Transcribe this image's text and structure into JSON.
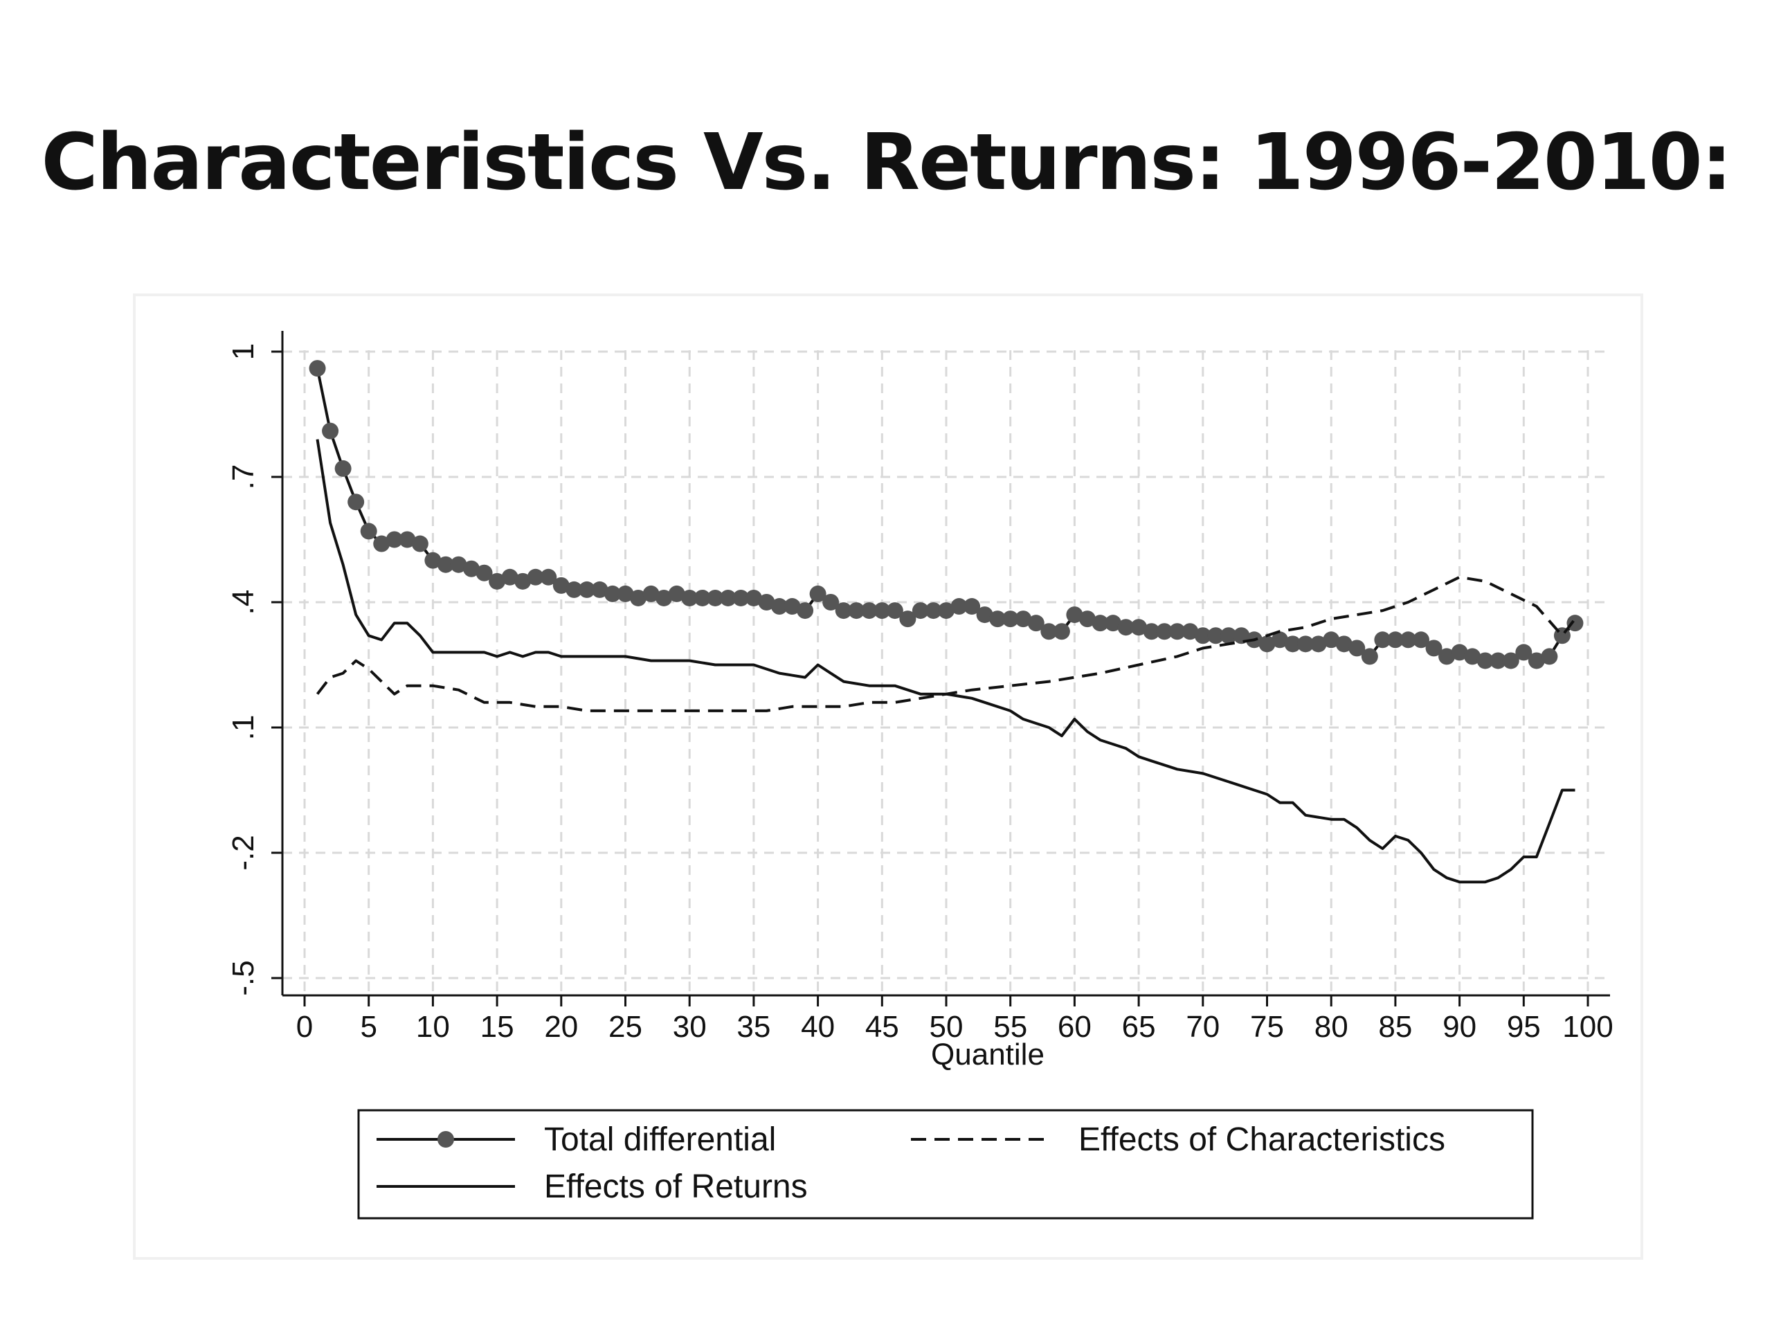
{
  "title": "Characteristics Vs. Returns: 1996-2010:",
  "chart_data": {
    "type": "line",
    "title": "Characteristics Vs. Returns: 1996-2010:",
    "xlabel": "Quantile",
    "ylabel": "",
    "xlim": [
      0,
      100
    ],
    "ylim": [
      -0.5,
      1
    ],
    "xticks": [
      "0",
      "5",
      "10",
      "15",
      "20",
      "25",
      "30",
      "35",
      "40",
      "45",
      "50",
      "55",
      "60",
      "65",
      "70",
      "75",
      "80",
      "85",
      "90",
      "95",
      "100"
    ],
    "yticks": [
      {
        "value": -0.5,
        "label": "-.5"
      },
      {
        "value": -0.2,
        "label": "-.2"
      },
      {
        "value": 0.1,
        "label": ".1"
      },
      {
        "value": 0.4,
        "label": ".4"
      },
      {
        "value": 0.7,
        "label": ".7"
      },
      {
        "value": 1,
        "label": "1"
      }
    ],
    "grid": true,
    "legend_position": "bottom",
    "series": [
      {
        "name": "Total differential",
        "style": "solid-markers",
        "color": "#555555",
        "x": [
          1,
          2,
          3,
          4,
          5,
          6,
          7,
          8,
          9,
          10,
          11,
          12,
          13,
          14,
          15,
          16,
          17,
          18,
          19,
          20,
          21,
          22,
          23,
          24,
          25,
          26,
          27,
          28,
          29,
          30,
          31,
          32,
          33,
          34,
          35,
          36,
          37,
          38,
          39,
          40,
          41,
          42,
          43,
          44,
          45,
          46,
          47,
          48,
          49,
          50,
          51,
          52,
          53,
          54,
          55,
          56,
          57,
          58,
          59,
          60,
          61,
          62,
          63,
          64,
          65,
          66,
          67,
          68,
          69,
          70,
          71,
          72,
          73,
          74,
          75,
          76,
          77,
          78,
          79,
          80,
          81,
          82,
          83,
          84,
          85,
          86,
          87,
          88,
          89,
          90,
          91,
          92,
          93,
          94,
          95,
          96,
          97,
          98,
          99
        ],
        "y": [
          0.96,
          0.81,
          0.72,
          0.64,
          0.57,
          0.54,
          0.55,
          0.55,
          0.54,
          0.5,
          0.49,
          0.49,
          0.48,
          0.47,
          0.45,
          0.46,
          0.45,
          0.46,
          0.46,
          0.44,
          0.43,
          0.43,
          0.43,
          0.42,
          0.42,
          0.41,
          0.42,
          0.41,
          0.42,
          0.41,
          0.41,
          0.41,
          0.41,
          0.41,
          0.41,
          0.4,
          0.39,
          0.39,
          0.38,
          0.42,
          0.4,
          0.38,
          0.38,
          0.38,
          0.38,
          0.38,
          0.36,
          0.38,
          0.38,
          0.38,
          0.39,
          0.39,
          0.37,
          0.36,
          0.36,
          0.36,
          0.35,
          0.33,
          0.33,
          0.37,
          0.36,
          0.35,
          0.35,
          0.34,
          0.34,
          0.33,
          0.33,
          0.33,
          0.33,
          0.32,
          0.32,
          0.32,
          0.32,
          0.31,
          0.3,
          0.31,
          0.3,
          0.3,
          0.3,
          0.31,
          0.3,
          0.29,
          0.27,
          0.31,
          0.31,
          0.31,
          0.31,
          0.29,
          0.27,
          0.28,
          0.27,
          0.26,
          0.26,
          0.26,
          0.28,
          0.26,
          0.27,
          0.32,
          0.35
        ]
      },
      {
        "name": "Effects of Characteristics",
        "style": "dashed",
        "color": "#111111",
        "x": [
          1,
          2,
          3,
          4,
          5,
          6,
          7,
          8,
          9,
          10,
          12,
          14,
          16,
          18,
          20,
          22,
          24,
          26,
          28,
          30,
          32,
          34,
          36,
          38,
          40,
          42,
          44,
          46,
          48,
          50,
          52,
          55,
          58,
          60,
          62,
          65,
          68,
          70,
          72,
          74,
          76,
          78,
          80,
          82,
          84,
          86,
          88,
          90,
          92,
          94,
          96,
          98,
          99
        ],
        "y": [
          0.18,
          0.22,
          0.23,
          0.26,
          0.24,
          0.21,
          0.18,
          0.2,
          0.2,
          0.2,
          0.19,
          0.16,
          0.16,
          0.15,
          0.15,
          0.14,
          0.14,
          0.14,
          0.14,
          0.14,
          0.14,
          0.14,
          0.14,
          0.15,
          0.15,
          0.15,
          0.16,
          0.16,
          0.17,
          0.18,
          0.19,
          0.2,
          0.21,
          0.22,
          0.23,
          0.25,
          0.27,
          0.29,
          0.3,
          0.31,
          0.33,
          0.34,
          0.36,
          0.37,
          0.38,
          0.4,
          0.43,
          0.46,
          0.45,
          0.42,
          0.39,
          0.32,
          0.36
        ]
      },
      {
        "name": "Effects of Returns",
        "style": "solid",
        "color": "#111111",
        "x": [
          1,
          2,
          3,
          4,
          5,
          6,
          7,
          8,
          9,
          10,
          11,
          12,
          13,
          14,
          15,
          16,
          17,
          18,
          19,
          20,
          22,
          25,
          27,
          29,
          30,
          32,
          34,
          35,
          37,
          39,
          40,
          41,
          42,
          44,
          46,
          48,
          50,
          52,
          53,
          55,
          56,
          57,
          58,
          59,
          60,
          61,
          62,
          63,
          64,
          65,
          66,
          67,
          68,
          70,
          72,
          74,
          75,
          76,
          77,
          78,
          80,
          81,
          82,
          83,
          84,
          85,
          86,
          87,
          88,
          89,
          90,
          91,
          92,
          93,
          94,
          95,
          96,
          97,
          98,
          99
        ],
        "y": [
          0.79,
          0.59,
          0.49,
          0.37,
          0.32,
          0.31,
          0.35,
          0.35,
          0.32,
          0.28,
          0.28,
          0.28,
          0.28,
          0.28,
          0.27,
          0.28,
          0.27,
          0.28,
          0.28,
          0.27,
          0.27,
          0.27,
          0.26,
          0.26,
          0.26,
          0.25,
          0.25,
          0.25,
          0.23,
          0.22,
          0.25,
          0.23,
          0.21,
          0.2,
          0.2,
          0.18,
          0.18,
          0.17,
          0.16,
          0.14,
          0.12,
          0.11,
          0.1,
          0.08,
          0.12,
          0.09,
          0.07,
          0.06,
          0.05,
          0.03,
          0.02,
          0.01,
          0.0,
          -0.01,
          -0.03,
          -0.05,
          -0.06,
          -0.08,
          -0.08,
          -0.11,
          -0.12,
          -0.12,
          -0.14,
          -0.17,
          -0.19,
          -0.16,
          -0.17,
          -0.2,
          -0.24,
          -0.26,
          -0.27,
          -0.27,
          -0.27,
          -0.26,
          -0.24,
          -0.21,
          -0.21,
          -0.13,
          -0.05,
          -0.05
        ]
      }
    ]
  }
}
